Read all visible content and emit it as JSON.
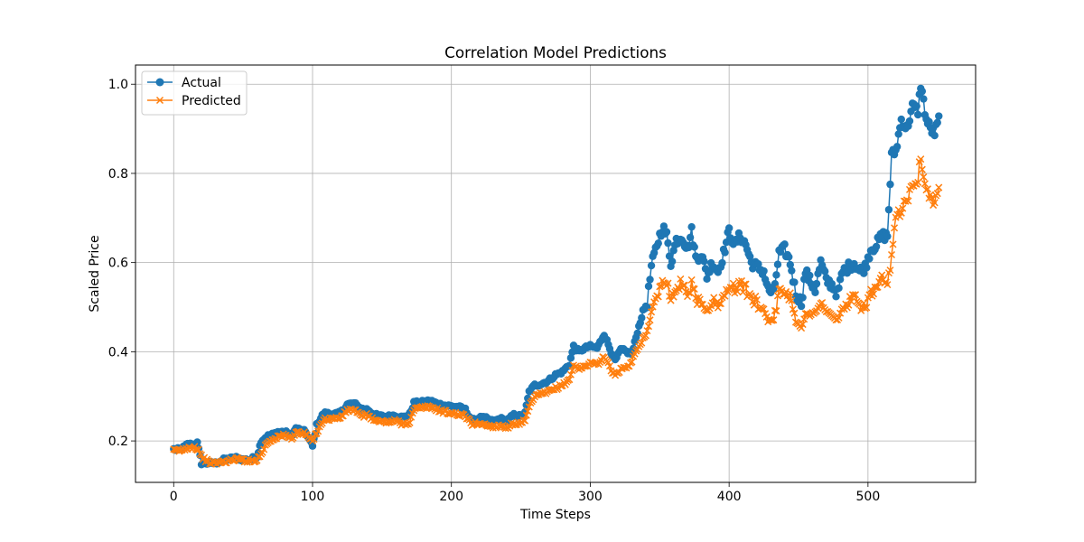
{
  "chart_data": {
    "type": "line",
    "title": "Correlation Model Predictions",
    "xlabel": "Time Steps",
    "ylabel": "Scaled Price",
    "xlim": [
      -27.5,
      577.5
    ],
    "ylim": [
      0.107,
      1.043
    ],
    "x_ticks": [
      0,
      100,
      200,
      300,
      400,
      500
    ],
    "y_ticks": [
      0.2,
      0.4,
      0.6,
      0.8,
      1.0
    ],
    "x_tick_labels": [
      "0",
      "100",
      "200",
      "300",
      "400",
      "500"
    ],
    "y_tick_labels": [
      "0.2",
      "0.4",
      "0.6",
      "0.8",
      "1.0"
    ],
    "grid": true,
    "legend_position": "upper-left",
    "series": [
      {
        "name": "Actual",
        "color": "#1f77b4",
        "marker": "circle",
        "anchors": [
          [
            0,
            0.181
          ],
          [
            5,
            0.18
          ],
          [
            10,
            0.192
          ],
          [
            15,
            0.192
          ],
          [
            17,
            0.195
          ],
          [
            20,
            0.15
          ],
          [
            25,
            0.15
          ],
          [
            30,
            0.15
          ],
          [
            35,
            0.157
          ],
          [
            40,
            0.16
          ],
          [
            45,
            0.162
          ],
          [
            50,
            0.158
          ],
          [
            55,
            0.158
          ],
          [
            60,
            0.165
          ],
          [
            63,
            0.2
          ],
          [
            67,
            0.21
          ],
          [
            72,
            0.215
          ],
          [
            75,
            0.22
          ],
          [
            80,
            0.22
          ],
          [
            85,
            0.212
          ],
          [
            88,
            0.228
          ],
          [
            95,
            0.22
          ],
          [
            100,
            0.188
          ],
          [
            103,
            0.235
          ],
          [
            108,
            0.262
          ],
          [
            115,
            0.26
          ],
          [
            120,
            0.262
          ],
          [
            125,
            0.282
          ],
          [
            130,
            0.284
          ],
          [
            135,
            0.272
          ],
          [
            140,
            0.27
          ],
          [
            145,
            0.258
          ],
          [
            150,
            0.255
          ],
          [
            155,
            0.255
          ],
          [
            160,
            0.258
          ],
          [
            165,
            0.252
          ],
          [
            170,
            0.26
          ],
          [
            173,
            0.285
          ],
          [
            180,
            0.287
          ],
          [
            185,
            0.29
          ],
          [
            190,
            0.283
          ],
          [
            195,
            0.28
          ],
          [
            200,
            0.278
          ],
          [
            205,
            0.276
          ],
          [
            210,
            0.27
          ],
          [
            215,
            0.245
          ],
          [
            220,
            0.252
          ],
          [
            225,
            0.25
          ],
          [
            230,
            0.243
          ],
          [
            235,
            0.25
          ],
          [
            240,
            0.245
          ],
          [
            245,
            0.258
          ],
          [
            250,
            0.255
          ],
          [
            253,
            0.262
          ],
          [
            256,
            0.31
          ],
          [
            260,
            0.325
          ],
          [
            265,
            0.328
          ],
          [
            270,
            0.335
          ],
          [
            275,
            0.348
          ],
          [
            280,
            0.355
          ],
          [
            285,
            0.372
          ],
          [
            288,
            0.412
          ],
          [
            292,
            0.4
          ],
          [
            296,
            0.408
          ],
          [
            300,
            0.412
          ],
          [
            305,
            0.408
          ],
          [
            310,
            0.44
          ],
          [
            315,
            0.4
          ],
          [
            318,
            0.38
          ],
          [
            322,
            0.405
          ],
          [
            326,
            0.4
          ],
          [
            330,
            0.395
          ],
          [
            334,
            0.445
          ],
          [
            338,
            0.49
          ],
          [
            341,
            0.51
          ],
          [
            344,
            0.59
          ],
          [
            348,
            0.64
          ],
          [
            352,
            0.68
          ],
          [
            355,
            0.66
          ],
          [
            358,
            0.6
          ],
          [
            362,
            0.65
          ],
          [
            366,
            0.66
          ],
          [
            370,
            0.63
          ],
          [
            373,
            0.67
          ],
          [
            376,
            0.61
          ],
          [
            380,
            0.62
          ],
          [
            384,
            0.57
          ],
          [
            388,
            0.6
          ],
          [
            392,
            0.58
          ],
          [
            396,
            0.62
          ],
          [
            400,
            0.67
          ],
          [
            404,
            0.64
          ],
          [
            408,
            0.66
          ],
          [
            412,
            0.64
          ],
          [
            416,
            0.6
          ],
          [
            420,
            0.59
          ],
          [
            425,
            0.58
          ],
          [
            428,
            0.54
          ],
          [
            432,
            0.53
          ],
          [
            436,
            0.62
          ],
          [
            440,
            0.63
          ],
          [
            444,
            0.6
          ],
          [
            448,
            0.53
          ],
          [
            452,
            0.51
          ],
          [
            455,
            0.58
          ],
          [
            458,
            0.56
          ],
          [
            462,
            0.54
          ],
          [
            466,
            0.6
          ],
          [
            470,
            0.56
          ],
          [
            474,
            0.55
          ],
          [
            478,
            0.53
          ],
          [
            482,
            0.58
          ],
          [
            486,
            0.59
          ],
          [
            490,
            0.6
          ],
          [
            494,
            0.58
          ],
          [
            498,
            0.59
          ],
          [
            502,
            0.63
          ],
          [
            506,
            0.64
          ],
          [
            510,
            0.66
          ],
          [
            514,
            0.66
          ],
          [
            517,
            0.84
          ],
          [
            520,
            0.85
          ],
          [
            524,
            0.92
          ],
          [
            528,
            0.9
          ],
          [
            532,
            0.95
          ],
          [
            536,
            0.94
          ],
          [
            538,
            1.0
          ],
          [
            540,
            0.96
          ],
          [
            542,
            0.92
          ],
          [
            545,
            0.9
          ],
          [
            548,
            0.89
          ],
          [
            551,
            0.92
          ]
        ]
      },
      {
        "name": "Predicted",
        "color": "#ff7f0e",
        "marker": "x",
        "anchors": [
          [
            0,
            0.178
          ],
          [
            5,
            0.178
          ],
          [
            10,
            0.185
          ],
          [
            15,
            0.186
          ],
          [
            18,
            0.18
          ],
          [
            20,
            0.165
          ],
          [
            25,
            0.152
          ],
          [
            30,
            0.15
          ],
          [
            35,
            0.153
          ],
          [
            40,
            0.155
          ],
          [
            45,
            0.16
          ],
          [
            50,
            0.157
          ],
          [
            55,
            0.155
          ],
          [
            60,
            0.158
          ],
          [
            63,
            0.17
          ],
          [
            67,
            0.195
          ],
          [
            72,
            0.205
          ],
          [
            75,
            0.21
          ],
          [
            80,
            0.212
          ],
          [
            85,
            0.205
          ],
          [
            88,
            0.22
          ],
          [
            95,
            0.215
          ],
          [
            100,
            0.198
          ],
          [
            103,
            0.22
          ],
          [
            108,
            0.248
          ],
          [
            115,
            0.25
          ],
          [
            120,
            0.252
          ],
          [
            125,
            0.268
          ],
          [
            130,
            0.27
          ],
          [
            135,
            0.255
          ],
          [
            140,
            0.258
          ],
          [
            145,
            0.245
          ],
          [
            150,
            0.243
          ],
          [
            155,
            0.242
          ],
          [
            160,
            0.245
          ],
          [
            165,
            0.238
          ],
          [
            170,
            0.242
          ],
          [
            173,
            0.27
          ],
          [
            180,
            0.275
          ],
          [
            185,
            0.276
          ],
          [
            190,
            0.27
          ],
          [
            195,
            0.265
          ],
          [
            200,
            0.262
          ],
          [
            205,
            0.26
          ],
          [
            210,
            0.255
          ],
          [
            215,
            0.238
          ],
          [
            220,
            0.24
          ],
          [
            225,
            0.235
          ],
          [
            230,
            0.232
          ],
          [
            235,
            0.235
          ],
          [
            240,
            0.23
          ],
          [
            245,
            0.24
          ],
          [
            250,
            0.238
          ],
          [
            253,
            0.245
          ],
          [
            256,
            0.275
          ],
          [
            260,
            0.3
          ],
          [
            265,
            0.305
          ],
          [
            270,
            0.31
          ],
          [
            275,
            0.318
          ],
          [
            280,
            0.325
          ],
          [
            285,
            0.338
          ],
          [
            288,
            0.37
          ],
          [
            292,
            0.36
          ],
          [
            296,
            0.368
          ],
          [
            300,
            0.375
          ],
          [
            305,
            0.372
          ],
          [
            310,
            0.39
          ],
          [
            315,
            0.36
          ],
          [
            318,
            0.345
          ],
          [
            322,
            0.362
          ],
          [
            326,
            0.36
          ],
          [
            330,
            0.38
          ],
          [
            334,
            0.405
          ],
          [
            338,
            0.43
          ],
          [
            341,
            0.445
          ],
          [
            344,
            0.49
          ],
          [
            348,
            0.52
          ],
          [
            352,
            0.565
          ],
          [
            355,
            0.56
          ],
          [
            358,
            0.52
          ],
          [
            362,
            0.54
          ],
          [
            366,
            0.555
          ],
          [
            370,
            0.53
          ],
          [
            373,
            0.55
          ],
          [
            376,
            0.52
          ],
          [
            380,
            0.51
          ],
          [
            384,
            0.49
          ],
          [
            388,
            0.515
          ],
          [
            392,
            0.5
          ],
          [
            396,
            0.52
          ],
          [
            400,
            0.55
          ],
          [
            404,
            0.54
          ],
          [
            408,
            0.55
          ],
          [
            412,
            0.54
          ],
          [
            416,
            0.52
          ],
          [
            420,
            0.51
          ],
          [
            425,
            0.495
          ],
          [
            428,
            0.47
          ],
          [
            432,
            0.475
          ],
          [
            436,
            0.53
          ],
          [
            440,
            0.535
          ],
          [
            444,
            0.525
          ],
          [
            448,
            0.47
          ],
          [
            452,
            0.455
          ],
          [
            455,
            0.485
          ],
          [
            458,
            0.48
          ],
          [
            462,
            0.49
          ],
          [
            466,
            0.51
          ],
          [
            470,
            0.49
          ],
          [
            474,
            0.48
          ],
          [
            478,
            0.47
          ],
          [
            482,
            0.5
          ],
          [
            486,
            0.51
          ],
          [
            490,
            0.52
          ],
          [
            494,
            0.505
          ],
          [
            498,
            0.5
          ],
          [
            502,
            0.53
          ],
          [
            506,
            0.54
          ],
          [
            510,
            0.56
          ],
          [
            514,
            0.545
          ],
          [
            517,
            0.61
          ],
          [
            520,
            0.7
          ],
          [
            524,
            0.72
          ],
          [
            528,
            0.74
          ],
          [
            532,
            0.78
          ],
          [
            536,
            0.79
          ],
          [
            538,
            0.84
          ],
          [
            540,
            0.8
          ],
          [
            542,
            0.76
          ],
          [
            545,
            0.75
          ],
          [
            548,
            0.73
          ],
          [
            551,
            0.76
          ]
        ]
      }
    ],
    "n_points": 552
  }
}
